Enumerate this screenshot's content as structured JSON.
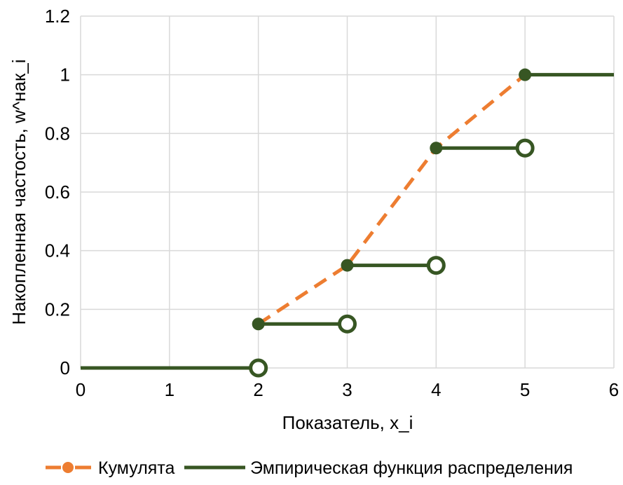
{
  "chart_data": {
    "type": "line",
    "xlabel": "Показатель, x_i",
    "ylabel": "Накопленная частость, w^нак_i",
    "xlim": [
      0,
      6
    ],
    "ylim": [
      0,
      1.2
    ],
    "x_ticks": [
      0,
      1,
      2,
      3,
      4,
      5,
      6
    ],
    "y_ticks": [
      0,
      0.2,
      0.4,
      0.6,
      0.8,
      1,
      1.2
    ],
    "grid": true,
    "legend": "bottom",
    "series": [
      {
        "name": "Кумулята",
        "color": "#ED7D31",
        "dashed": true,
        "markers": true,
        "x": [
          2,
          3,
          4,
          5
        ],
        "y": [
          0.15,
          0.35,
          0.75,
          1
        ]
      },
      {
        "name": "Эмпирическая функция распределения",
        "color": "#375623",
        "dashed": false,
        "steps": [
          {
            "x": [
              0,
              2
            ],
            "y": 0,
            "start_filled": false,
            "end_open": true
          },
          {
            "x": [
              2,
              3
            ],
            "y": 0.15,
            "start_filled": true,
            "end_open": true
          },
          {
            "x": [
              3,
              4
            ],
            "y": 0.35,
            "start_filled": true,
            "end_open": true
          },
          {
            "x": [
              4,
              5
            ],
            "y": 0.75,
            "start_filled": true,
            "end_open": true
          },
          {
            "x": [
              5,
              6
            ],
            "y": 1,
            "start_filled": true,
            "end_open": false
          }
        ]
      }
    ]
  }
}
